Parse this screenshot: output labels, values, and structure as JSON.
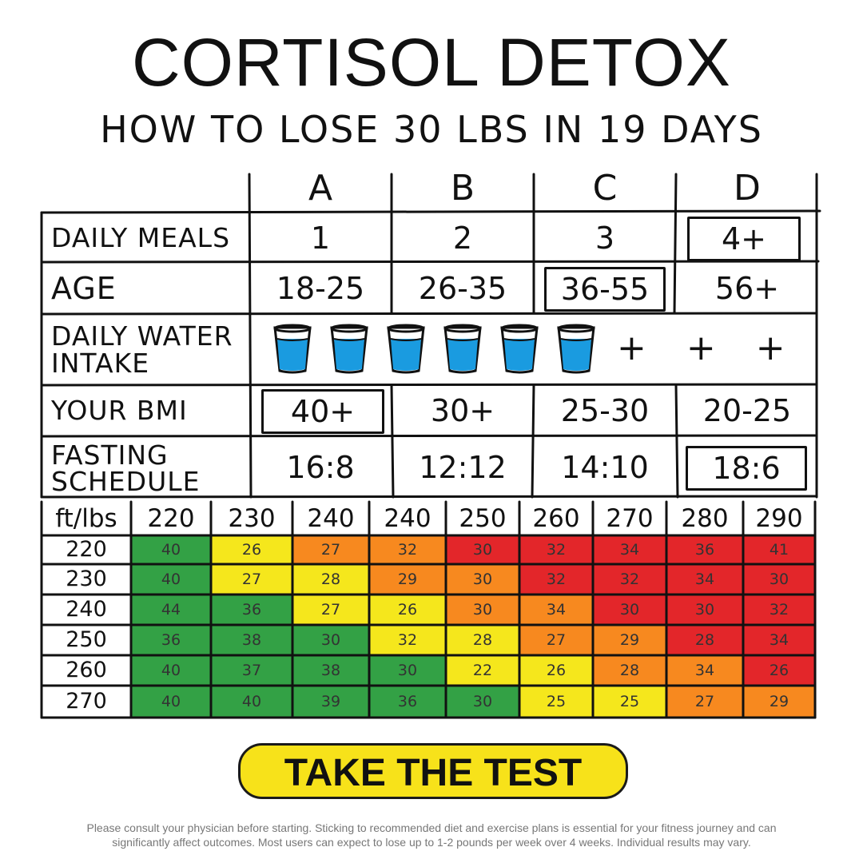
{
  "header": {
    "title": "CORTISOL DETOX",
    "subtitle": "HOW TO LOSE 30 LBS IN 19 DAYS"
  },
  "options_table": {
    "columns": [
      "A",
      "B",
      "C",
      "D"
    ],
    "rows": [
      {
        "label": "DAILY MEALS",
        "values": [
          "1",
          "2",
          "3",
          "4+"
        ],
        "selected_index": 3
      },
      {
        "label": "AGE",
        "values": [
          "18-25",
          "26-35",
          "36-55",
          "56+"
        ],
        "selected_index": 2
      },
      {
        "label_line1": "DAILY WATER",
        "label_line2": "INTAKE",
        "cups": 6,
        "extra": "+ + +"
      },
      {
        "label": "YOUR BMI",
        "values": [
          "40+",
          "30+",
          "25-30",
          "20-25"
        ],
        "selected_index": 0
      },
      {
        "label_line1": "FASTING",
        "label_line2": "SCHEDULE",
        "values": [
          "16:8",
          "12:12",
          "14:10",
          "18:6"
        ],
        "selected_index": 3
      }
    ]
  },
  "heat_table": {
    "corner": "ft/lbs",
    "columns": [
      "220",
      "230",
      "240",
      "240",
      "250",
      "260",
      "270",
      "280",
      "290"
    ],
    "rows": [
      {
        "label": "220",
        "values": [
          "40",
          "26",
          "27",
          "32",
          "30",
          "32",
          "34",
          "36",
          "41"
        ]
      },
      {
        "label": "230",
        "values": [
          "40",
          "27",
          "28",
          "29",
          "30",
          "32",
          "32",
          "34",
          "30"
        ]
      },
      {
        "label": "240",
        "values": [
          "44",
          "36",
          "27",
          "26",
          "30",
          "34",
          "30",
          "30",
          "32"
        ]
      },
      {
        "label": "250",
        "values": [
          "36",
          "38",
          "30",
          "32",
          "28",
          "27",
          "29",
          "28",
          "34"
        ]
      },
      {
        "label": "260",
        "values": [
          "40",
          "37",
          "38",
          "30",
          "22",
          "26",
          "28",
          "34",
          "26"
        ]
      },
      {
        "label": "270",
        "values": [
          "40",
          "40",
          "39",
          "36",
          "30",
          "25",
          "25",
          "27",
          "29"
        ]
      }
    ],
    "colors": {
      "green": "#33a145",
      "yellow": "#f5e71c",
      "orange": "#f7891f",
      "red": "#e3262a"
    },
    "color_map": [
      [
        "green",
        "yellow",
        "orange",
        "orange",
        "red",
        "red",
        "red",
        "red",
        "red"
      ],
      [
        "green",
        "yellow",
        "yellow",
        "orange",
        "orange",
        "red",
        "red",
        "red",
        "red"
      ],
      [
        "green",
        "green",
        "yellow",
        "yellow",
        "orange",
        "orange",
        "red",
        "red",
        "red"
      ],
      [
        "green",
        "green",
        "green",
        "yellow",
        "yellow",
        "orange",
        "orange",
        "red",
        "red"
      ],
      [
        "green",
        "green",
        "green",
        "green",
        "yellow",
        "yellow",
        "orange",
        "orange",
        "red"
      ],
      [
        "green",
        "green",
        "green",
        "green",
        "green",
        "yellow",
        "yellow",
        "orange",
        "orange"
      ]
    ]
  },
  "cta": {
    "label": "TAKE THE TEST"
  },
  "disclaimer": {
    "line1": "Please consult your physician before starting. Sticking to recommended diet and exercise plans is essential for your fitness journey and can",
    "line2": "significantly affect outcomes. Most users can expect to lose up to 1-2 pounds per week over 4 weeks. Individual results may vary."
  },
  "icons": {
    "water_cup": "water-glass-icon"
  }
}
